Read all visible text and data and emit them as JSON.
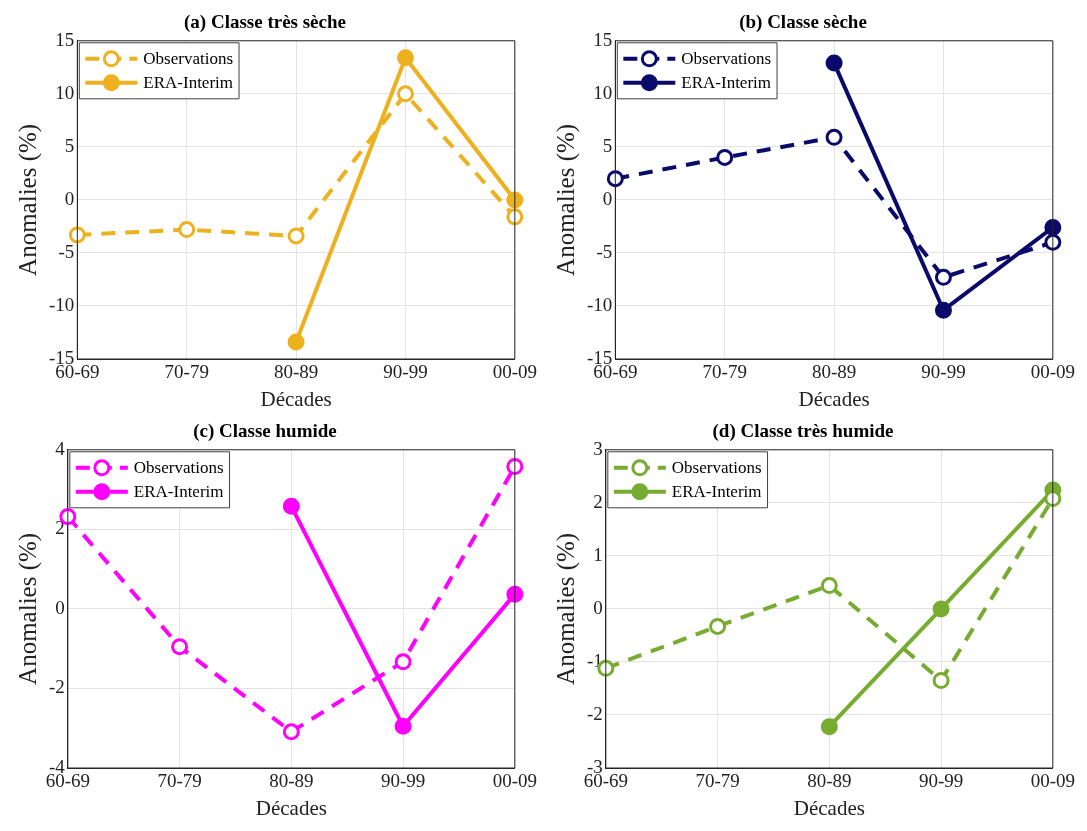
{
  "chart_data": [
    {
      "type": "line",
      "title": "(a) Classe très sèche",
      "xlabel": "Décades",
      "ylabel": "Anomalies (%)",
      "categories": [
        "60-69",
        "70-79",
        "80-89",
        "90-99",
        "00-09"
      ],
      "ylim": [
        -15,
        15
      ],
      "yticks": [
        -15,
        -10,
        -5,
        0,
        5,
        10,
        15
      ],
      "grid": true,
      "legend": "top left",
      "marker": "circle",
      "series": [
        {
          "name": "Observations",
          "color": "#edb120",
          "line_style": "dashed",
          "values": [
            -3.3,
            -2.8,
            -3.4,
            10.0,
            -1.6
          ]
        },
        {
          "name": "ERA-Interim",
          "color": "#edb120",
          "line_style": "solid",
          "values": [
            null,
            null,
            -13.4,
            13.4,
            0
          ]
        }
      ]
    },
    {
      "type": "line",
      "title": "(b) Classe sèche",
      "xlabel": "Décades",
      "ylabel": "Anomalies (%)",
      "categories": [
        "60-69",
        "70-79",
        "80-89",
        "90-99",
        "00-09"
      ],
      "ylim": [
        -15,
        15
      ],
      "yticks": [
        -15,
        -10,
        -5,
        0,
        5,
        10,
        15
      ],
      "grid": true,
      "legend": "top left",
      "marker": "circle",
      "series": [
        {
          "name": "Observations",
          "color": "#0a0a6b",
          "line_style": "dashed",
          "values": [
            2.0,
            4.0,
            5.9,
            -7.3,
            -4.0
          ]
        },
        {
          "name": "ERA-Interim",
          "color": "#0a0a6b",
          "line_style": "solid",
          "values": [
            null,
            null,
            12.9,
            -10.4,
            -2.6
          ]
        }
      ]
    },
    {
      "type": "line",
      "title": "(c) Classe humide",
      "xlabel": "Décades",
      "ylabel": "Anomalies (%)",
      "categories": [
        "60-69",
        "70-79",
        "80-89",
        "90-99",
        "00-09"
      ],
      "ylim": [
        -4,
        4
      ],
      "yticks": [
        -4,
        -2,
        0,
        2,
        4
      ],
      "grid": true,
      "legend": "top left",
      "marker": "circle",
      "series": [
        {
          "name": "Observations",
          "color": "#ff00ff",
          "line_style": "dashed",
          "values": [
            2.32,
            -0.95,
            -3.09,
            -1.33,
            3.58
          ]
        },
        {
          "name": "ERA-Interim",
          "color": "#ff00ff",
          "line_style": "solid",
          "values": [
            null,
            null,
            2.58,
            -2.95,
            0.37
          ]
        }
      ]
    },
    {
      "type": "line",
      "title": "(d) Classe très humide",
      "xlabel": "Décades",
      "ylabel": "Anomalies (%)",
      "categories": [
        "60-69",
        "70-79",
        "80-89",
        "90-99",
        "00-09"
      ],
      "ylim": [
        -3,
        3
      ],
      "yticks": [
        -3,
        -2,
        -1,
        0,
        1,
        2,
        3
      ],
      "grid": true,
      "legend": "top left",
      "marker": "circle",
      "series": [
        {
          "name": "Observations",
          "color": "#77ac30",
          "line_style": "dashed",
          "values": [
            -1.12,
            -0.33,
            0.44,
            -1.35,
            2.08
          ]
        },
        {
          "name": "ERA-Interim",
          "color": "#77ac30",
          "line_style": "solid",
          "values": [
            null,
            null,
            -2.22,
            0,
            2.24
          ]
        }
      ]
    }
  ]
}
